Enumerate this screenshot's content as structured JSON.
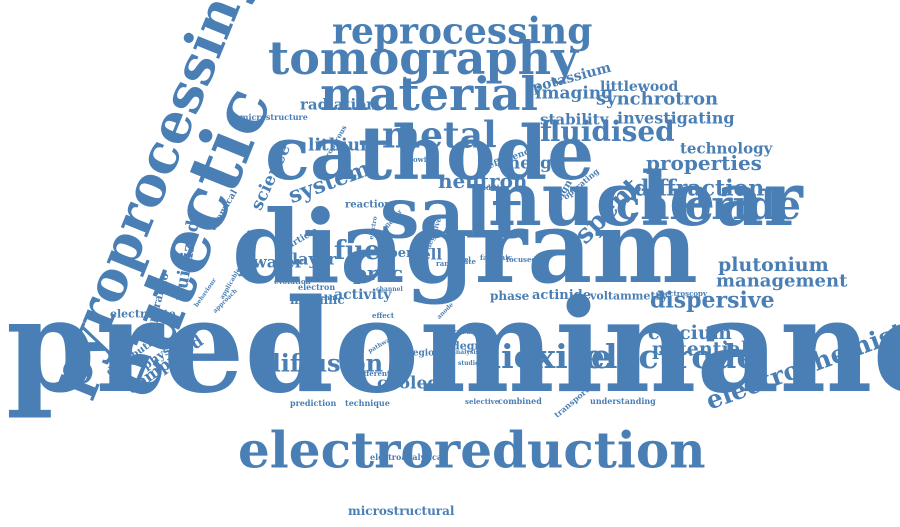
{
  "color": "#4a7fb5",
  "words": [
    {
      "text": "predominance",
      "size": 1.0
    },
    {
      "text": "diagram",
      "size": 0.76
    },
    {
      "text": "cathode",
      "size": 0.5
    },
    {
      "text": "eutectic",
      "size": 0.54
    },
    {
      "text": "nuclear",
      "size": 0.55
    },
    {
      "text": "salt",
      "size": 0.55
    },
    {
      "text": "pyroprocessing",
      "size": 0.42
    },
    {
      "text": "electroreduction",
      "size": 0.38
    },
    {
      "text": "tomography",
      "size": 0.33
    },
    {
      "text": "material",
      "size": 0.33
    },
    {
      "text": "chloride",
      "size": 0.31
    },
    {
      "text": "reprocessing",
      "size": 0.27
    },
    {
      "text": "metal",
      "size": 0.28
    },
    {
      "text": "dioxide",
      "size": 0.24
    },
    {
      "text": "electrode",
      "size": 0.24
    },
    {
      "text": "fluidised",
      "size": 0.22
    },
    {
      "text": "electrochemistry",
      "size": 0.21
    },
    {
      "text": "spent",
      "size": 0.2
    },
    {
      "text": "fuel",
      "size": 0.2
    },
    {
      "text": "diffusion",
      "size": 0.18
    },
    {
      "text": "dispersive",
      "size": 0.17
    },
    {
      "text": "diffraction",
      "size": 0.17
    },
    {
      "text": "properties",
      "size": 0.16
    },
    {
      "text": "plutonium",
      "size": 0.15
    },
    {
      "text": "management",
      "size": 0.14
    },
    {
      "text": "calcium",
      "size": 0.15
    },
    {
      "text": "potential",
      "size": 0.15
    },
    {
      "text": "system",
      "size": 0.17
    },
    {
      "text": "neutron",
      "size": 0.16
    },
    {
      "text": "proc",
      "size": 0.16
    },
    {
      "text": "computed",
      "size": 0.13
    },
    {
      "text": "fluidized",
      "size": 0.13
    },
    {
      "text": "science",
      "size": 0.13
    },
    {
      "text": "lithium",
      "size": 0.13
    },
    {
      "text": "radiation",
      "size": 0.11
    },
    {
      "text": "cooled",
      "size": 0.12
    },
    {
      "text": "synchrotron",
      "size": 0.13
    },
    {
      "text": "investigating",
      "size": 0.12
    },
    {
      "text": "stability",
      "size": 0.11
    },
    {
      "text": "technology",
      "size": 0.11
    },
    {
      "text": "imaging",
      "size": 0.12
    },
    {
      "text": "littlewood",
      "size": 0.1
    },
    {
      "text": "potassium",
      "size": 0.1
    },
    {
      "text": "energy",
      "size": 0.12
    },
    {
      "text": "water",
      "size": 0.11
    },
    {
      "text": "layer",
      "size": 0.12
    },
    {
      "text": "cell",
      "size": 0.11
    },
    {
      "text": "open",
      "size": 0.1
    },
    {
      "text": "activity",
      "size": 0.1
    },
    {
      "text": "metallic",
      "size": 0.09
    },
    {
      "text": "actinide",
      "size": 0.09
    },
    {
      "text": "phase",
      "size": 0.09
    },
    {
      "text": "voltammetry",
      "size": 0.08
    },
    {
      "text": "physical",
      "size": 0.09
    },
    {
      "text": "distribution",
      "size": 0.08
    },
    {
      "text": "electrolyte",
      "size": 0.08
    },
    {
      "text": "operando",
      "size": 0.08
    },
    {
      "text": "titanium",
      "size": 0.08
    },
    {
      "text": "chemical",
      "size": 0.07
    },
    {
      "text": "particle",
      "size": 0.07
    },
    {
      "text": "reaction",
      "size": 0.08
    },
    {
      "text": "degree",
      "size": 0.08
    },
    {
      "text": "current",
      "size": 0.07
    },
    {
      "text": "region",
      "size": 0.07
    },
    {
      "text": "prediction",
      "size": 0.06
    },
    {
      "text": "technique",
      "size": 0.06
    },
    {
      "text": "selective",
      "size": 0.05
    },
    {
      "text": "combined",
      "size": 0.06
    },
    {
      "text": "understanding",
      "size": 0.06
    },
    {
      "text": "transport",
      "size": 0.06
    },
    {
      "text": "spectroscopy",
      "size": 0.05
    },
    {
      "text": "electroanalytical",
      "size": 0.06
    },
    {
      "text": "microstructural",
      "size": 0.09
    },
    {
      "text": "microstructure",
      "size": 0.06
    },
    {
      "text": "efficiency",
      "size": 0.07
    },
    {
      "text": "design",
      "size": 0.07
    },
    {
      "text": "operating",
      "size": 0.06
    },
    {
      "text": "following",
      "size": 0.05
    },
    {
      "text": "condition",
      "size": 0.05
    },
    {
      "text": "microporous",
      "size": 0.05
    },
    {
      "text": "electron",
      "size": 0.06
    },
    {
      "text": "range",
      "size": 0.05
    },
    {
      "text": "novel",
      "size": 0.05
    },
    {
      "text": "focused",
      "size": 0.05
    },
    {
      "text": "faradaic",
      "size": 0.05
    },
    {
      "text": "rate",
      "size": 0.05
    },
    {
      "text": "increase",
      "size": 0.05
    },
    {
      "text": "different",
      "size": 0.05
    },
    {
      "text": "evolution",
      "size": 0.05
    },
    {
      "text": "beam",
      "size": 0.05
    },
    {
      "text": "effect",
      "size": 0.05
    },
    {
      "text": "applicable",
      "size": 0.04
    },
    {
      "text": "approach",
      "size": 0.04
    },
    {
      "text": "behaviour",
      "size": 0.04
    },
    {
      "text": "negative",
      "size": 0.05
    },
    {
      "text": "collector",
      "size": 0.04
    },
    {
      "text": "electro",
      "size": 0.04
    },
    {
      "text": "studies",
      "size": 0.04
    },
    {
      "text": "pathway",
      "size": 0.04
    },
    {
      "text": "anode",
      "size": 0.04
    },
    {
      "text": "channel",
      "size": 0.04
    },
    {
      "text": "analysis",
      "size": 0.04
    }
  ]
}
